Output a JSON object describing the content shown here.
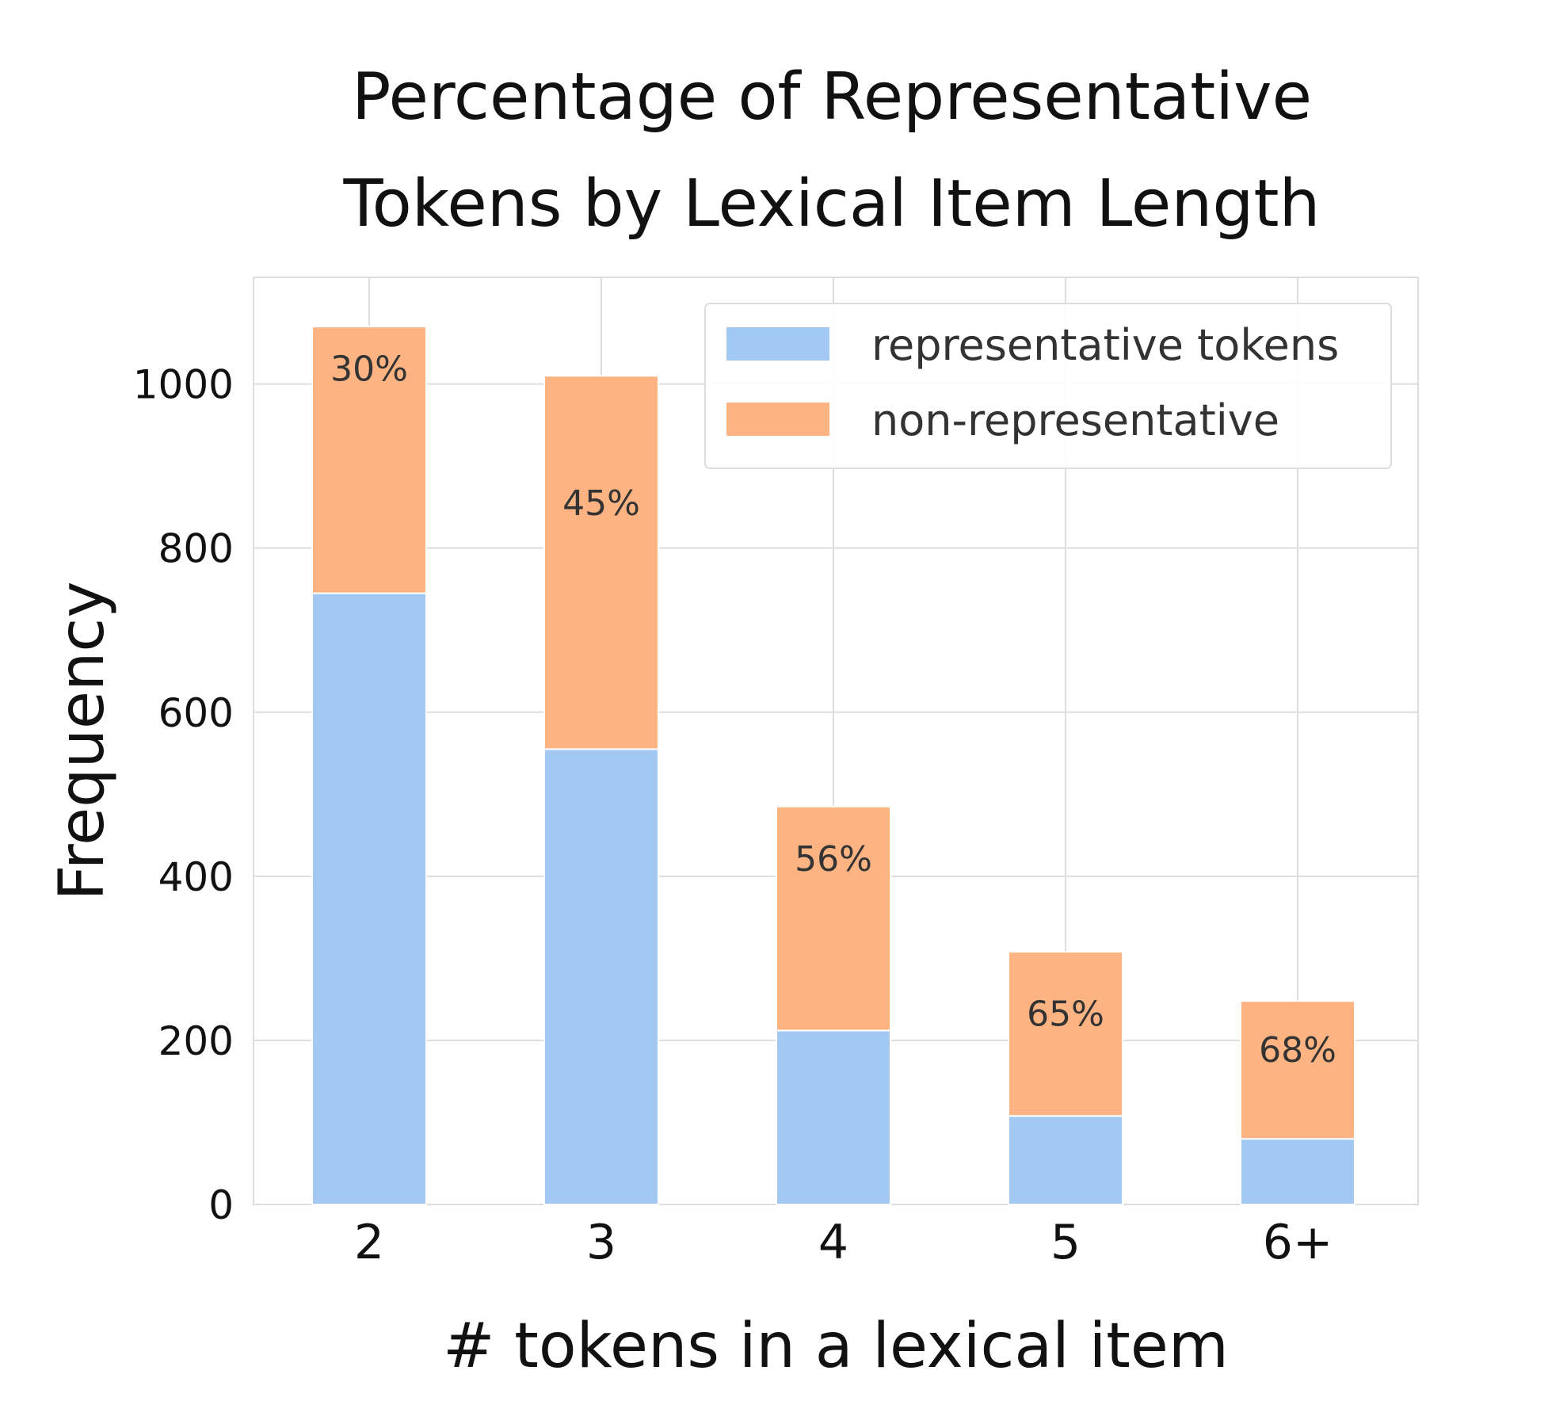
{
  "chart_data": {
    "type": "bar",
    "stacked": true,
    "title": "Percentage of Representative Tokens by Lexical Item Length",
    "title_lines": [
      "Percentage of Representative",
      "Tokens by Lexical Item Length"
    ],
    "xlabel": "# tokens in a lexical item",
    "ylabel": "Frequency",
    "categories": [
      "2",
      "3",
      "4",
      "5",
      "6+"
    ],
    "series": [
      {
        "name": "representative tokens",
        "color": "#a3c8f2",
        "values": [
          745,
          555,
          212,
          108,
          80
        ]
      },
      {
        "name": "non-representative",
        "color": "#fdb482",
        "values": [
          325,
          455,
          273,
          200,
          168
        ]
      }
    ],
    "data_labels": [
      "30%",
      "45%",
      "56%",
      "65%",
      "68%"
    ],
    "ylim": [
      0,
      1130
    ],
    "yticks": [
      0,
      200,
      400,
      600,
      800,
      1000
    ],
    "grid": true,
    "legend_position": "top-right"
  }
}
